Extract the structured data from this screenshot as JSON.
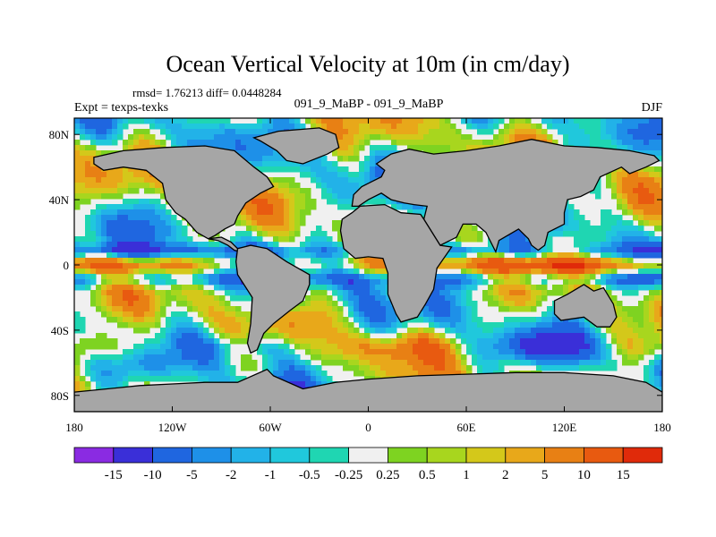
{
  "chart_data": {
    "type": "heatmap",
    "title": "Ocean Vertical Velocity at 10m (in cm/day)",
    "stats": "rmsd= 1.76213 diff= 0.0448284",
    "left_label": "Expt = texps-texks",
    "center_label": "091_9_MaBP - 091_9_MaBP",
    "right_label": "DJF",
    "x_ticks": [
      "180",
      "120W",
      "60W",
      "0",
      "60E",
      "120E",
      "180"
    ],
    "x_tick_values": [
      -180,
      -120,
      -60,
      0,
      60,
      120,
      180
    ],
    "y_ticks": [
      "80N",
      "40N",
      "0",
      "40S",
      "80S"
    ],
    "y_tick_values": [
      80,
      40,
      0,
      -40,
      -80
    ],
    "xlim": [
      -180,
      180
    ],
    "ylim": [
      -90,
      90
    ],
    "land_color": "#a6a6a6",
    "colorbar": {
      "levels": [
        "-15",
        "-10",
        "-5",
        "-2",
        "-1",
        "-0.5",
        "-0.25",
        "0.25",
        "0.5",
        "1",
        "2",
        "5",
        "10",
        "15"
      ],
      "colors": [
        "#8a2be2",
        "#3a2fd8",
        "#1f66e0",
        "#1e90e8",
        "#22b2e8",
        "#20c8dc",
        "#1fd6b2",
        "#f0f0f0",
        "#7ed321",
        "#a8d61e",
        "#d4c81a",
        "#e8a81a",
        "#e88014",
        "#e85a10",
        "#e02a0a"
      ]
    },
    "continents": [
      {
        "name": "north-america",
        "points": [
          [
            -168,
            66
          ],
          [
            -150,
            70
          ],
          [
            -125,
            72
          ],
          [
            -100,
            73
          ],
          [
            -82,
            70
          ],
          [
            -70,
            60
          ],
          [
            -62,
            54
          ],
          [
            -58,
            48
          ],
          [
            -66,
            44
          ],
          [
            -75,
            38
          ],
          [
            -80,
            30
          ],
          [
            -82,
            25
          ],
          [
            -88,
            22
          ],
          [
            -94,
            18
          ],
          [
            -98,
            16
          ],
          [
            -105,
            20
          ],
          [
            -112,
            28
          ],
          [
            -118,
            32
          ],
          [
            -124,
            40
          ],
          [
            -126,
            50
          ],
          [
            -136,
            58
          ],
          [
            -150,
            60
          ],
          [
            -162,
            58
          ],
          [
            -168,
            62
          ]
        ]
      },
      {
        "name": "central-america",
        "points": [
          [
            -98,
            16
          ],
          [
            -92,
            15
          ],
          [
            -86,
            12
          ],
          [
            -82,
            9
          ],
          [
            -78,
            8
          ],
          [
            -80,
            10
          ],
          [
            -84,
            14
          ],
          [
            -90,
            17
          ]
        ]
      },
      {
        "name": "greenland",
        "points": [
          [
            -70,
            78
          ],
          [
            -55,
            82
          ],
          [
            -30,
            84
          ],
          [
            -20,
            80
          ],
          [
            -18,
            72
          ],
          [
            -25,
            68
          ],
          [
            -40,
            62
          ],
          [
            -50,
            64
          ],
          [
            -56,
            70
          ],
          [
            -66,
            76
          ]
        ]
      },
      {
        "name": "south-america",
        "points": [
          [
            -80,
            10
          ],
          [
            -72,
            12
          ],
          [
            -62,
            10
          ],
          [
            -50,
            2
          ],
          [
            -36,
            -6
          ],
          [
            -36,
            -12
          ],
          [
            -40,
            -22
          ],
          [
            -48,
            -28
          ],
          [
            -58,
            -36
          ],
          [
            -64,
            -42
          ],
          [
            -68,
            -52
          ],
          [
            -72,
            -54
          ],
          [
            -74,
            -48
          ],
          [
            -72,
            -36
          ],
          [
            -71,
            -20
          ],
          [
            -80,
            -6
          ],
          [
            -81,
            2
          ]
        ]
      },
      {
        "name": "eurasia",
        "points": [
          [
            -10,
            36
          ],
          [
            -9,
            43
          ],
          [
            -4,
            48
          ],
          [
            2,
            51
          ],
          [
            8,
            54
          ],
          [
            10,
            58
          ],
          [
            5,
            62
          ],
          [
            14,
            68
          ],
          [
            25,
            71
          ],
          [
            40,
            68
          ],
          [
            60,
            70
          ],
          [
            80,
            73
          ],
          [
            100,
            77
          ],
          [
            120,
            73
          ],
          [
            140,
            72
          ],
          [
            160,
            70
          ],
          [
            175,
            67
          ],
          [
            178,
            64
          ],
          [
            170,
            60
          ],
          [
            160,
            56
          ],
          [
            155,
            60
          ],
          [
            142,
            54
          ],
          [
            138,
            46
          ],
          [
            130,
            42
          ],
          [
            122,
            40
          ],
          [
            120,
            32
          ],
          [
            120,
            25
          ],
          [
            110,
            20
          ],
          [
            108,
            12
          ],
          [
            104,
            9
          ],
          [
            100,
            12
          ],
          [
            98,
            16
          ],
          [
            92,
            22
          ],
          [
            80,
            15
          ],
          [
            78,
            8
          ],
          [
            72,
            20
          ],
          [
            66,
            25
          ],
          [
            58,
            25
          ],
          [
            54,
            17
          ],
          [
            44,
            12
          ],
          [
            34,
            28
          ],
          [
            36,
            36
          ],
          [
            28,
            37
          ],
          [
            22,
            38
          ],
          [
            14,
            40
          ],
          [
            8,
            44
          ],
          [
            0,
            40
          ],
          [
            -6,
            36
          ]
        ]
      },
      {
        "name": "africa",
        "points": [
          [
            -17,
            21
          ],
          [
            -16,
            28
          ],
          [
            -10,
            32
          ],
          [
            -5,
            36
          ],
          [
            10,
            37
          ],
          [
            20,
            32
          ],
          [
            32,
            31
          ],
          [
            34,
            28
          ],
          [
            44,
            12
          ],
          [
            51,
            11
          ],
          [
            42,
            -2
          ],
          [
            40,
            -15
          ],
          [
            35,
            -24
          ],
          [
            30,
            -32
          ],
          [
            20,
            -35
          ],
          [
            17,
            -30
          ],
          [
            12,
            -18
          ],
          [
            12,
            -5
          ],
          [
            9,
            4
          ],
          [
            0,
            5
          ],
          [
            -8,
            4
          ],
          [
            -15,
            10
          ]
        ]
      },
      {
        "name": "australia",
        "points": [
          [
            114,
            -22
          ],
          [
            122,
            -18
          ],
          [
            132,
            -12
          ],
          [
            138,
            -16
          ],
          [
            144,
            -14
          ],
          [
            150,
            -24
          ],
          [
            152,
            -32
          ],
          [
            148,
            -38
          ],
          [
            140,
            -38
          ],
          [
            132,
            -32
          ],
          [
            118,
            -34
          ],
          [
            114,
            -30
          ]
        ]
      },
      {
        "name": "antarctica",
        "points": [
          [
            -180,
            -78
          ],
          [
            -160,
            -76
          ],
          [
            -140,
            -74
          ],
          [
            -120,
            -73
          ],
          [
            -100,
            -72
          ],
          [
            -80,
            -72
          ],
          [
            -62,
            -64
          ],
          [
            -58,
            -68
          ],
          [
            -40,
            -76
          ],
          [
            -20,
            -72
          ],
          [
            0,
            -70
          ],
          [
            30,
            -68
          ],
          [
            60,
            -67
          ],
          [
            90,
            -66
          ],
          [
            120,
            -66
          ],
          [
            150,
            -68
          ],
          [
            170,
            -72
          ],
          [
            180,
            -78
          ],
          [
            180,
            -90
          ],
          [
            -180,
            -90
          ]
        ]
      }
    ]
  }
}
